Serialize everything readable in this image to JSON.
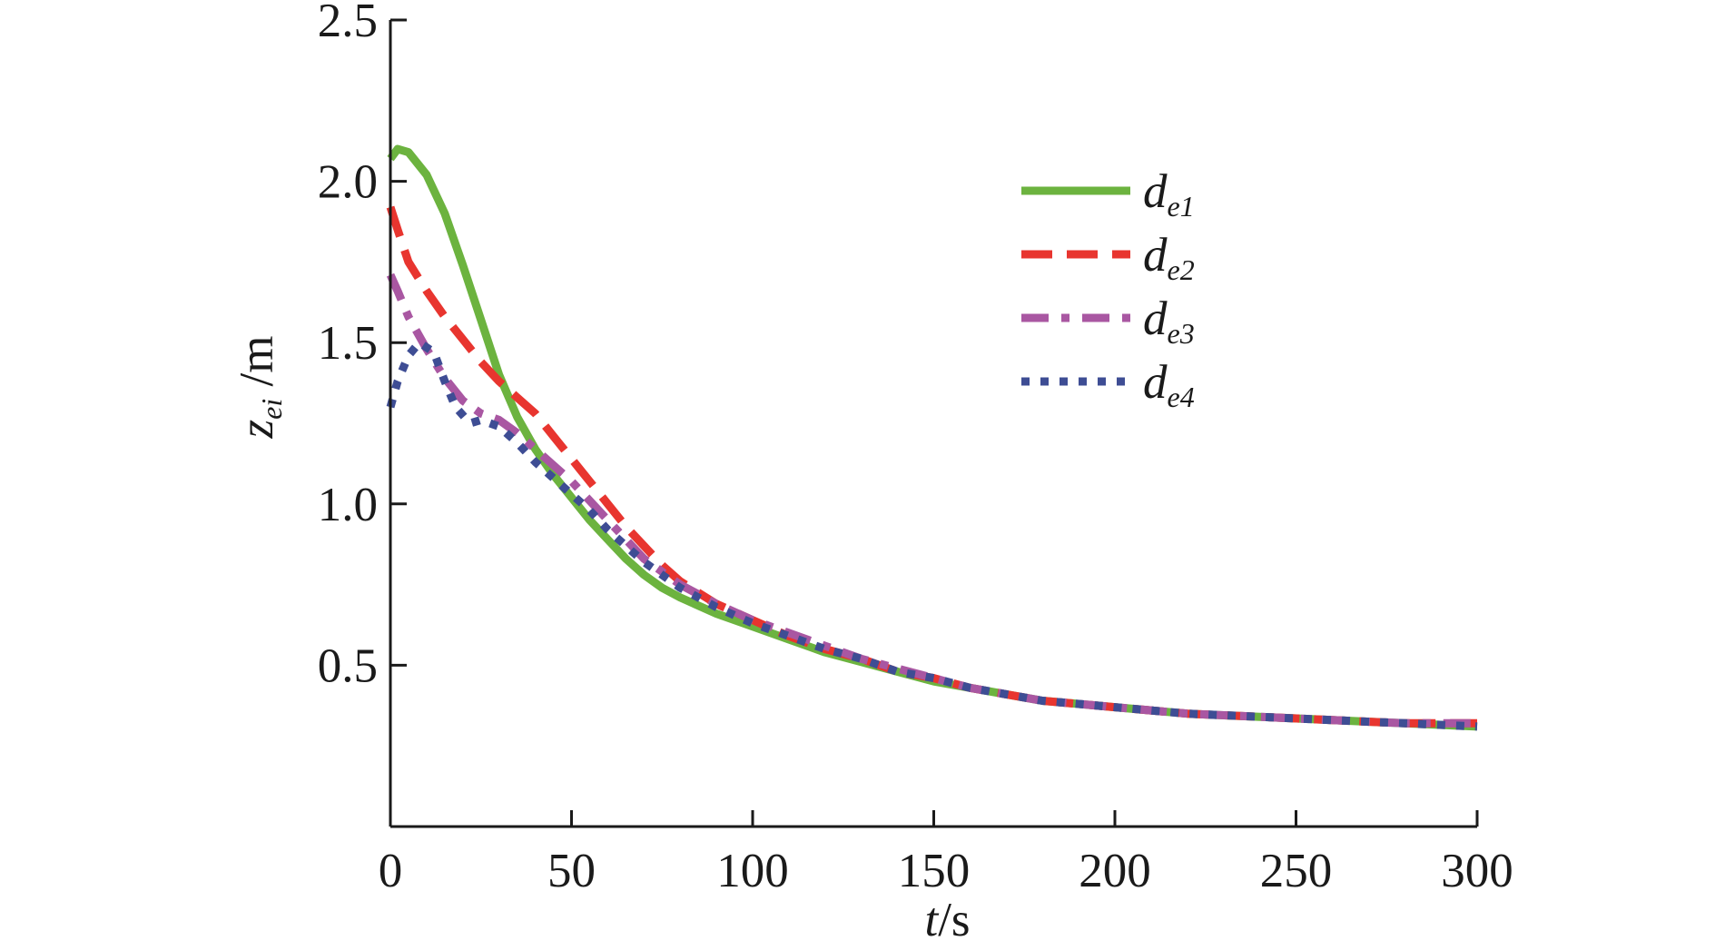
{
  "chart_data": {
    "type": "line",
    "title": "",
    "xlabel": {
      "italic": "t",
      "rest": "/s"
    },
    "ylabel": {
      "main": "z",
      "sub": "ei",
      "rest": " /m"
    },
    "xlim": [
      0,
      300
    ],
    "ylim": [
      0,
      2.5
    ],
    "xticks": [
      0,
      50,
      100,
      150,
      200,
      250,
      300
    ],
    "xtick_labels": [
      "0",
      "50",
      "100",
      "150",
      "200",
      "250",
      "300"
    ],
    "yticks": [
      0.5,
      1.0,
      1.5,
      2.0,
      2.5
    ],
    "ytick_labels": [
      "0.5",
      "1.0",
      "1.5",
      "2.0",
      "2.5"
    ],
    "grid": false,
    "legend_position": "top-right",
    "series": [
      {
        "name": "de1",
        "label_main": "d",
        "label_sub": "e1",
        "color": "#6cb33f",
        "style": "solid",
        "x": [
          0,
          2,
          5,
          10,
          15,
          20,
          25,
          30,
          35,
          40,
          45,
          50,
          55,
          60,
          65,
          70,
          75,
          80,
          90,
          100,
          110,
          120,
          130,
          140,
          150,
          160,
          170,
          180,
          190,
          200,
          220,
          240,
          260,
          280,
          300
        ],
        "y": [
          2.07,
          2.1,
          2.09,
          2.02,
          1.9,
          1.74,
          1.57,
          1.4,
          1.27,
          1.17,
          1.09,
          1.02,
          0.95,
          0.89,
          0.83,
          0.78,
          0.74,
          0.71,
          0.66,
          0.62,
          0.58,
          0.54,
          0.51,
          0.48,
          0.45,
          0.43,
          0.41,
          0.39,
          0.38,
          0.37,
          0.35,
          0.34,
          0.33,
          0.32,
          0.31
        ]
      },
      {
        "name": "de2",
        "label_main": "d",
        "label_sub": "e2",
        "color": "#e8352f",
        "style": "dashed",
        "x": [
          0,
          2,
          5,
          10,
          15,
          20,
          25,
          30,
          35,
          40,
          45,
          50,
          55,
          60,
          65,
          70,
          75,
          80,
          90,
          100,
          110,
          120,
          130,
          140,
          150,
          160,
          170,
          180,
          190,
          200,
          220,
          240,
          260,
          280,
          300
        ],
        "y": [
          1.92,
          1.85,
          1.75,
          1.66,
          1.58,
          1.51,
          1.44,
          1.38,
          1.33,
          1.28,
          1.21,
          1.14,
          1.07,
          1.0,
          0.93,
          0.87,
          0.81,
          0.76,
          0.69,
          0.64,
          0.59,
          0.55,
          0.52,
          0.48,
          0.46,
          0.43,
          0.41,
          0.39,
          0.38,
          0.37,
          0.35,
          0.34,
          0.33,
          0.32,
          0.32
        ]
      },
      {
        "name": "de3",
        "label_main": "d",
        "label_sub": "e3",
        "color": "#a957a2",
        "style": "dashdot",
        "x": [
          0,
          2,
          5,
          10,
          15,
          20,
          25,
          30,
          35,
          40,
          45,
          50,
          55,
          60,
          65,
          70,
          75,
          80,
          90,
          100,
          110,
          120,
          130,
          140,
          150,
          160,
          170,
          180,
          190,
          200,
          220,
          240,
          260,
          280,
          300
        ],
        "y": [
          1.71,
          1.66,
          1.58,
          1.48,
          1.39,
          1.32,
          1.28,
          1.26,
          1.22,
          1.17,
          1.12,
          1.07,
          1.01,
          0.95,
          0.89,
          0.83,
          0.79,
          0.75,
          0.69,
          0.64,
          0.6,
          0.56,
          0.52,
          0.49,
          0.46,
          0.43,
          0.41,
          0.39,
          0.38,
          0.37,
          0.35,
          0.34,
          0.33,
          0.32,
          0.32
        ]
      },
      {
        "name": "de4",
        "label_main": "d",
        "label_sub": "e4",
        "color": "#3e4d94",
        "style": "dotted",
        "x": [
          0,
          2,
          5,
          8,
          12,
          15,
          18,
          22,
          25,
          30,
          35,
          40,
          45,
          50,
          55,
          60,
          65,
          70,
          75,
          80,
          90,
          100,
          110,
          120,
          130,
          140,
          150,
          160,
          170,
          180,
          190,
          200,
          220,
          240,
          260,
          280,
          300
        ],
        "y": [
          1.3,
          1.38,
          1.46,
          1.5,
          1.47,
          1.38,
          1.3,
          1.25,
          1.26,
          1.24,
          1.19,
          1.13,
          1.08,
          1.03,
          0.98,
          0.92,
          0.87,
          0.82,
          0.78,
          0.74,
          0.68,
          0.63,
          0.59,
          0.55,
          0.52,
          0.48,
          0.46,
          0.43,
          0.41,
          0.39,
          0.38,
          0.37,
          0.35,
          0.34,
          0.33,
          0.32,
          0.31
        ]
      }
    ]
  }
}
